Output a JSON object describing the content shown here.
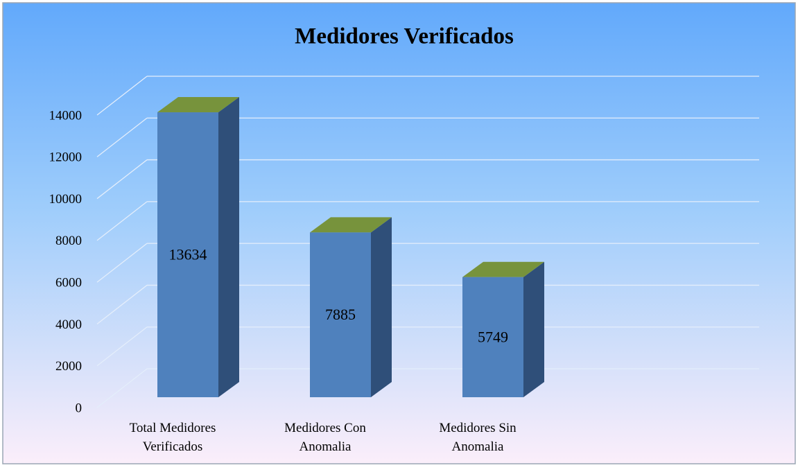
{
  "chart_data": {
    "type": "bar3d",
    "title": "Medidores Verificados",
    "categories": [
      "Total Medidores Verificados",
      "Medidores Con Anomalia",
      "Medidores Sin Anomalia"
    ],
    "values": [
      13634,
      7885,
      5749
    ],
    "color": "#4f81bd",
    "side_color": "#2f4f79",
    "top_color": "#77933c",
    "ylim": [
      0,
      14000
    ],
    "yticks": [
      0,
      2000,
      4000,
      6000,
      8000,
      10000,
      12000,
      14000
    ],
    "grid": true
  }
}
